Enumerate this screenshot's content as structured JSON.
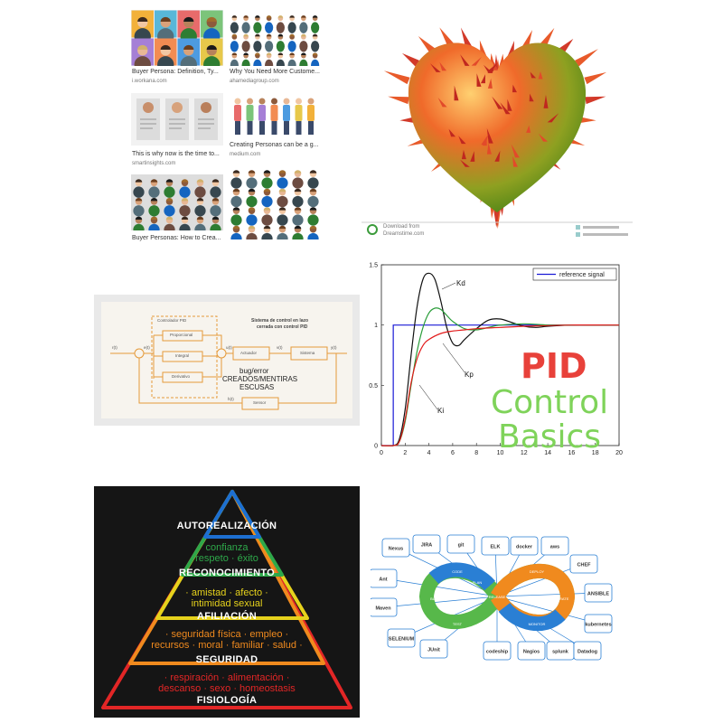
{
  "personas": {
    "items": [
      {
        "title": "Buyer Persona: Definition, Ty...",
        "source": "i.workana.com"
      },
      {
        "title": "Why You Need More Custome...",
        "source": "ahamediagroup.com"
      },
      {
        "title": "This is why now is the time to...",
        "source": "smartinsights.com"
      },
      {
        "title": "Creating Personas can be a g...",
        "source": "medium.com"
      },
      {
        "title": "Buyer Personas: How to Crea...",
        "source": ""
      }
    ]
  },
  "heart": {
    "watermark_line1": "Download from",
    "watermark_line2": "Dreamstime.com"
  },
  "block_diagram": {
    "heading_line1": "Sistema de control en lazo",
    "heading_line2": "cerrada con control PID",
    "controller_label": "Controlador PID",
    "proportional": "Proporcional",
    "integral": "Integral",
    "derivative": "Derivativo",
    "actuator": "Actuador",
    "system": "Sistema",
    "sensor": "Sensor",
    "signals": {
      "r": "r(t)",
      "e": "e(t)",
      "u": "u(t)",
      "v": "v(t)",
      "y": "y(t)",
      "h": "h(t)"
    },
    "annotation_line1": "bug/error",
    "annotation_line2": "CREADOS/MENTIRAS",
    "annotation_line3": "ESCUSAS"
  },
  "pid_chart": {
    "big_title_line1": "PID",
    "big_title_line2": "Control",
    "big_title_line3": "Basics",
    "colors": {
      "pid": "#e8413a",
      "control": "#7fd35a",
      "basics": "#7fd35a"
    }
  },
  "chart_data": {
    "type": "line",
    "title": "",
    "xlabel": "",
    "ylabel": "",
    "xlim": [
      0,
      20
    ],
    "ylim": [
      0,
      1.5
    ],
    "x_ticks": [
      "0",
      "2",
      "4",
      "6",
      "8",
      "10",
      "12",
      "14",
      "16",
      "18",
      "20"
    ],
    "y_ticks": [
      "0",
      "0.5",
      "1",
      "1.5"
    ],
    "legend": "top-right",
    "series": [
      {
        "name": "reference signal",
        "color": "#1a1ad6",
        "x": [
          0,
          1,
          1,
          20
        ],
        "y": [
          0,
          0,
          1,
          1
        ]
      },
      {
        "name": "Kd",
        "color": "#111111",
        "x": [
          0,
          1,
          1.5,
          2,
          2.5,
          3,
          3.5,
          4,
          4.5,
          5,
          5.5,
          6,
          6.5,
          7,
          8,
          9,
          10,
          11,
          12,
          13,
          14,
          16,
          18,
          20
        ],
        "y": [
          0,
          0,
          0.05,
          0.3,
          0.75,
          1.15,
          1.38,
          1.43,
          1.38,
          1.2,
          0.98,
          0.85,
          0.83,
          0.88,
          0.97,
          1.04,
          1.05,
          1.02,
          0.99,
          0.98,
          0.99,
          1.0,
          1.0,
          1.0
        ]
      },
      {
        "name": "Kp",
        "color": "#2a9d3a",
        "x": [
          0,
          1,
          1.5,
          2,
          2.5,
          3,
          3.5,
          4,
          4.5,
          5,
          5.5,
          6,
          7,
          8,
          9,
          10,
          12,
          14,
          16,
          20
        ],
        "y": [
          0,
          0,
          0.03,
          0.2,
          0.5,
          0.78,
          0.98,
          1.1,
          1.14,
          1.13,
          1.08,
          1.03,
          0.97,
          0.96,
          0.98,
          1.0,
          1.01,
          1.0,
          1.0,
          1.0
        ]
      },
      {
        "name": "Ki",
        "color": "#e21b1b",
        "x": [
          0,
          1,
          1.5,
          2,
          2.5,
          3,
          3.5,
          4,
          5,
          6,
          7,
          8,
          10,
          12,
          14,
          16,
          20
        ],
        "y": [
          0,
          0,
          0.03,
          0.22,
          0.52,
          0.72,
          0.83,
          0.88,
          0.93,
          0.95,
          0.96,
          0.97,
          0.98,
          0.99,
          0.995,
          1.0,
          1.0
        ]
      }
    ],
    "labels": [
      "Kd",
      "Kp",
      "Ki"
    ]
  },
  "pyramid": {
    "levels": [
      {
        "title": "AUTOREALIZACIÓN",
        "items": []
      },
      {
        "title": "RECONOCIMIENTO",
        "items": [
          "confianza",
          "respeto · éxito"
        ]
      },
      {
        "title": "AFILIACIÓN",
        "items": [
          "· amistad · afecto ·",
          "intimidad sexual"
        ]
      },
      {
        "title": "SEGURIDAD",
        "items": [
          "· seguridad física · empleo ·",
          "recursos · moral · familiar · salud ·"
        ]
      },
      {
        "title": "FISIOLOGÍA",
        "items": [
          "· respiración · alimentación ·",
          "descanso · sexo · homeostasis"
        ]
      }
    ],
    "colors": [
      "#1d6fd1",
      "#2ea84a",
      "#e6d21c",
      "#f08a1e",
      "#e22626"
    ]
  },
  "devops": {
    "tools": [
      "Nexus",
      "JIRA",
      "git",
      "ELK",
      "docker",
      "aws",
      "CHEF",
      "ANSIBLE",
      "kubernetes",
      "Nagios",
      "splunk",
      "Datadog",
      "SELENIUM",
      "JUnit",
      "Maven",
      "Ant",
      "codeship"
    ],
    "phases": [
      "CODE",
      "BUILD",
      "TEST",
      "RELEASE",
      "DEPLOY",
      "OPERATE",
      "MONITOR",
      "PLAN"
    ]
  }
}
